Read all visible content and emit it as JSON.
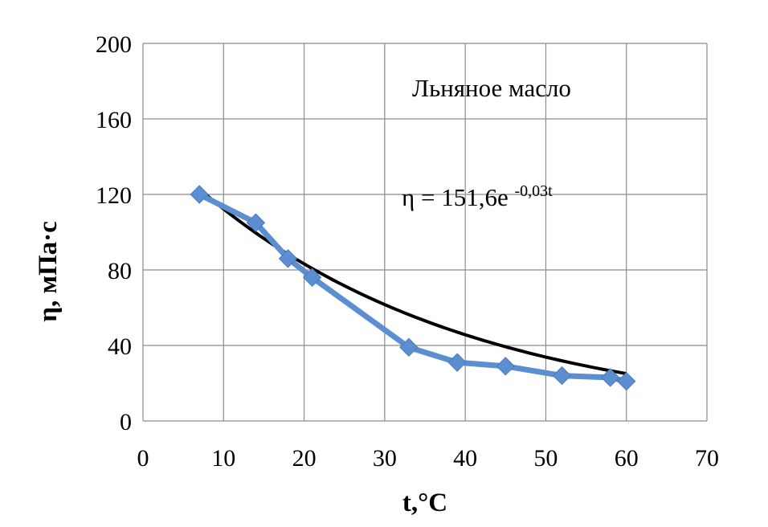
{
  "chart_data": {
    "type": "line",
    "xlabel": "t,°C",
    "ylabel": "η, мПа·с",
    "xlim": [
      0,
      70
    ],
    "ylim": [
      0,
      200
    ],
    "xticks": [
      "0",
      "10",
      "20",
      "30",
      "40",
      "50",
      "60",
      "70"
    ],
    "yticks": [
      "0",
      "40",
      "80",
      "120",
      "160",
      "200"
    ],
    "grid": true,
    "annotations": {
      "series_label": "Льняное масло",
      "equation_main": "η = 151,6e",
      "equation_exp": "-0,03t"
    },
    "series": [
      {
        "kind": "data",
        "color": "#5b8fcf",
        "marker": "diamond",
        "x": [
          7,
          14,
          18,
          21,
          33,
          39,
          45,
          52,
          58,
          60
        ],
        "y": [
          120,
          105,
          86,
          76,
          39,
          31,
          29,
          24,
          23,
          21
        ]
      },
      {
        "kind": "trendline",
        "color": "#000000",
        "model": "exponential",
        "a": 151.6,
        "b": -0.03,
        "x_range": [
          7,
          60
        ]
      }
    ]
  }
}
